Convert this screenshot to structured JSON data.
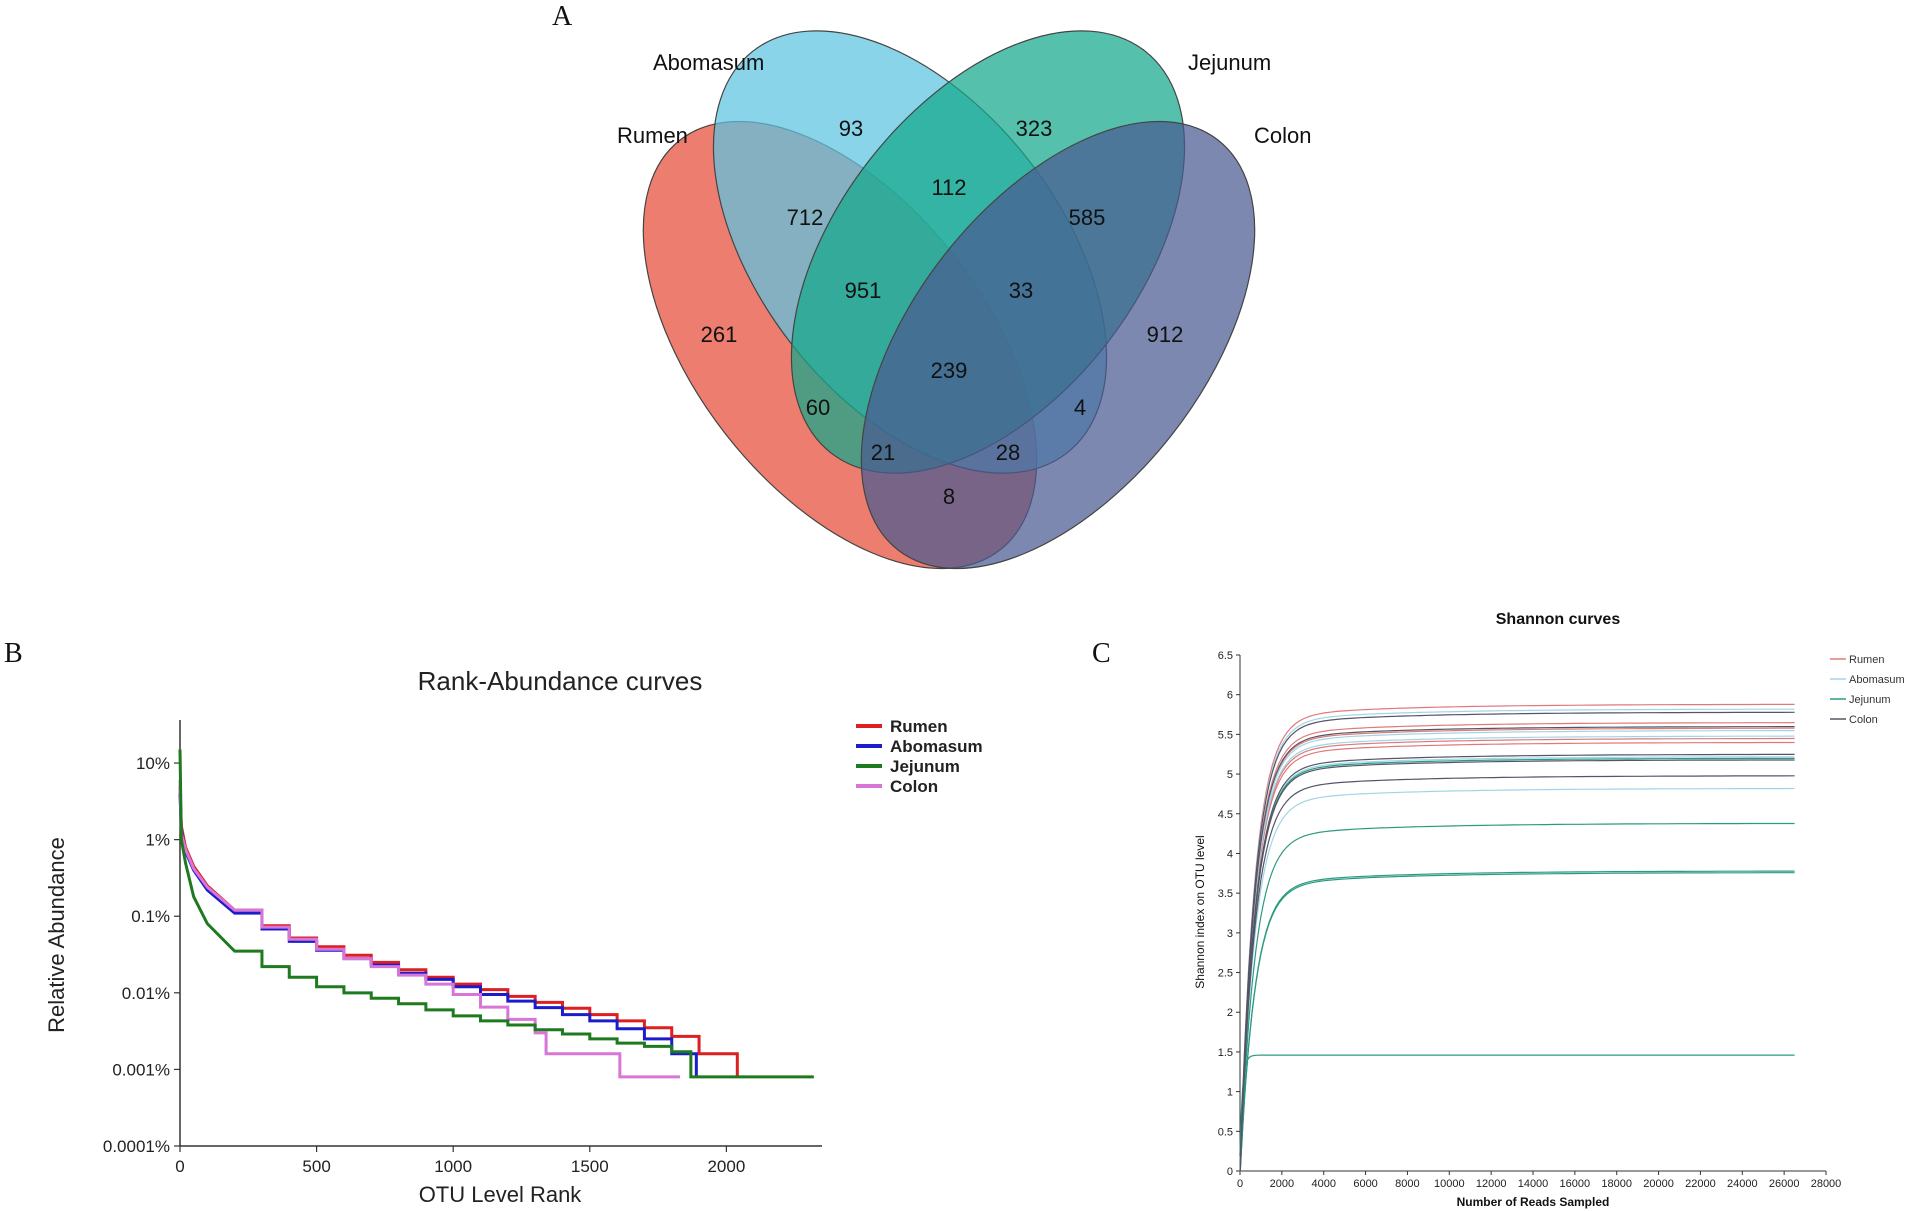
{
  "panels": {
    "a": "A",
    "b": "B",
    "c": "C"
  },
  "colors": {
    "rumen": "#e8604f",
    "abomasum": "#5cc3e0",
    "jejunum": "#14a88a",
    "colon": "#4a5a90",
    "b_rumen": "#dd1f1f",
    "b_abomasum": "#1c1ccc",
    "b_jejunum": "#1e7a1e",
    "b_colon": "#d876d8",
    "c_rumen": "#e07a7a",
    "c_abomasum": "#9fd6e6",
    "c_jejunum": "#2a9a80",
    "c_colon": "#555566"
  },
  "chart_data": [
    {
      "type": "venn",
      "title": "A",
      "sets": [
        "Rumen",
        "Abomasum",
        "Jejunum",
        "Colon"
      ],
      "regions": [
        {
          "sets": [
            "Rumen"
          ],
          "value": 261
        },
        {
          "sets": [
            "Abomasum"
          ],
          "value": 93
        },
        {
          "sets": [
            "Jejunum"
          ],
          "value": 323
        },
        {
          "sets": [
            "Colon"
          ],
          "value": 912
        },
        {
          "sets": [
            "Rumen",
            "Abomasum"
          ],
          "value": 712
        },
        {
          "sets": [
            "Abomasum",
            "Jejunum"
          ],
          "value": 112
        },
        {
          "sets": [
            "Jejunum",
            "Colon"
          ],
          "value": 585
        },
        {
          "sets": [
            "Rumen",
            "Colon"
          ],
          "value": 8
        },
        {
          "sets": [
            "Rumen",
            "Abomasum",
            "Jejunum"
          ],
          "value": 951
        },
        {
          "sets": [
            "Abomasum",
            "Jejunum",
            "Colon"
          ],
          "value": 33
        },
        {
          "sets": [
            "Rumen",
            "Abomasum",
            "Jejunum",
            "Colon"
          ],
          "value": 239
        },
        {
          "sets": [
            "Rumen",
            "Jejunum"
          ],
          "value": 60
        },
        {
          "sets": [
            "Abomasum",
            "Colon"
          ],
          "value": 4
        },
        {
          "sets": [
            "Rumen",
            "Jejunum",
            "Colon"
          ],
          "value": 21
        },
        {
          "sets": [
            "Rumen",
            "Abomasum",
            "Colon"
          ],
          "value": 28
        }
      ]
    },
    {
      "type": "line",
      "panel": "B",
      "title": "Rank-Abundance curves",
      "xlabel": "OTU Level Rank",
      "ylabel": "Relative Abundance",
      "xlim": [
        0,
        2350
      ],
      "xticks": [
        "0",
        "500",
        "1000",
        "1500",
        "2000"
      ],
      "yscale": "log",
      "ylim": [
        0.0001,
        20
      ],
      "ytick_values": [
        10,
        1,
        0.1,
        0.01,
        0.001,
        0.0001
      ],
      "yticks": [
        "10%",
        "1%",
        "0.1%",
        "0.01%",
        "0.001%",
        "0.0001%"
      ],
      "legend": "top-right",
      "series": [
        {
          "name": "Rumen",
          "x": [
            0,
            5,
            20,
            50,
            100,
            200,
            300,
            400,
            500,
            600,
            700,
            800,
            900,
            1000,
            1100,
            1200,
            1300,
            1400,
            1500,
            1600,
            1700,
            1800,
            1900,
            2040
          ],
          "y": [
            5,
            1.5,
            0.8,
            0.45,
            0.25,
            0.12,
            0.075,
            0.052,
            0.04,
            0.031,
            0.025,
            0.02,
            0.016,
            0.013,
            0.011,
            0.009,
            0.0075,
            0.0063,
            0.0052,
            0.0043,
            0.0035,
            0.0027,
            0.0016,
            0.0008
          ]
        },
        {
          "name": "Abomasum",
          "x": [
            0,
            5,
            20,
            50,
            100,
            200,
            300,
            400,
            500,
            600,
            700,
            800,
            900,
            1000,
            1100,
            1200,
            1300,
            1400,
            1500,
            1600,
            1700,
            1800,
            1890
          ],
          "y": [
            4,
            1.3,
            0.7,
            0.4,
            0.22,
            0.11,
            0.068,
            0.047,
            0.036,
            0.028,
            0.023,
            0.018,
            0.015,
            0.012,
            0.0095,
            0.0078,
            0.0064,
            0.0052,
            0.0043,
            0.0034,
            0.0025,
            0.0016,
            0.0008
          ]
        },
        {
          "name": "Jejunum",
          "x": [
            0,
            5,
            20,
            50,
            100,
            200,
            300,
            400,
            500,
            600,
            700,
            800,
            900,
            1000,
            1100,
            1200,
            1300,
            1400,
            1500,
            1600,
            1700,
            1800,
            1870,
            2320
          ],
          "y": [
            15,
            1,
            0.5,
            0.18,
            0.08,
            0.035,
            0.022,
            0.016,
            0.012,
            0.01,
            0.0085,
            0.0072,
            0.006,
            0.005,
            0.0043,
            0.0038,
            0.0033,
            0.0029,
            0.0025,
            0.0022,
            0.002,
            0.0017,
            0.0008,
            0.0008
          ]
        },
        {
          "name": "Colon",
          "x": [
            0,
            5,
            20,
            50,
            100,
            200,
            300,
            400,
            500,
            600,
            700,
            800,
            900,
            1000,
            1100,
            1200,
            1300,
            1340,
            1500,
            1610,
            1830
          ],
          "y": [
            6,
            1.2,
            0.75,
            0.42,
            0.24,
            0.12,
            0.072,
            0.05,
            0.037,
            0.028,
            0.022,
            0.017,
            0.013,
            0.0095,
            0.0065,
            0.0045,
            0.003,
            0.0016,
            0.0016,
            0.0008,
            0.0008
          ]
        }
      ]
    },
    {
      "type": "line",
      "panel": "C",
      "title": "Shannon curves",
      "xlabel": "Number of Reads Sampled",
      "ylabel": "Shannon index on OTU level",
      "xlim": [
        0,
        28000
      ],
      "ylim": [
        0,
        6.5
      ],
      "xticks": [
        "0",
        "2000",
        "4000",
        "6000",
        "8000",
        "10000",
        "12000",
        "14000",
        "16000",
        "18000",
        "20000",
        "22000",
        "24000",
        "26000",
        "28000"
      ],
      "yticks": [
        "0",
        "0.5",
        "1",
        "1.5",
        "2",
        "2.5",
        "3",
        "3.5",
        "4",
        "4.5",
        "5",
        "5.5",
        "6",
        "6.5"
      ],
      "legend": "top-right",
      "legend_entries": [
        "Rumen",
        "Abomasum",
        "Jejunum",
        "Colon"
      ],
      "max_x": 26500,
      "series": [
        {
          "name": "Rumen",
          "plateaus": [
            5.88,
            5.65,
            5.58,
            5.45,
            5.4
          ]
        },
        {
          "name": "Abomasum",
          "plateaus": [
            5.82,
            5.55,
            5.48,
            5.22,
            4.82
          ]
        },
        {
          "name": "Jejunum",
          "plateaus": [
            5.2,
            4.38,
            3.78,
            3.76,
            1.46
          ]
        },
        {
          "name": "Colon",
          "plateaus": [
            5.78,
            5.6,
            5.25,
            5.18,
            4.98
          ]
        }
      ]
    }
  ]
}
